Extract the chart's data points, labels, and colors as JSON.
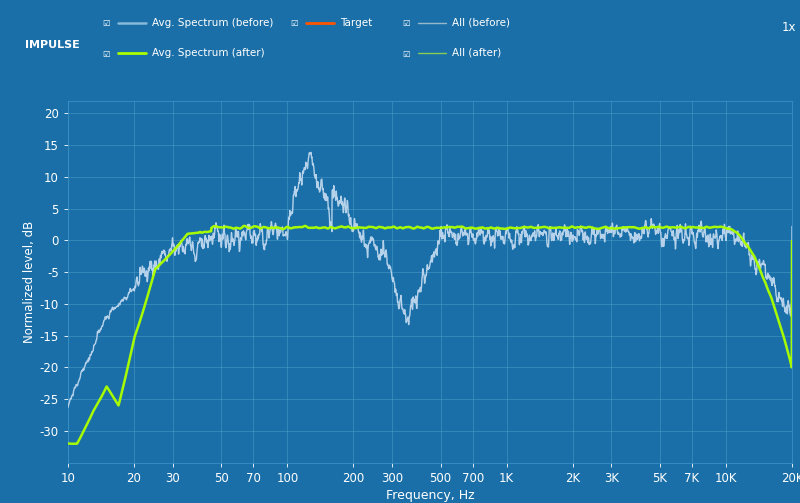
{
  "bg_color": "#1a6fa8",
  "plot_bg_color": "#1a6fa8",
  "grid_color": "#4a9fc8",
  "xlabel": "Frequency, Hz",
  "ylabel": "Normalized level, dB",
  "ylim": [
    -35,
    22
  ],
  "yticks": [
    -30,
    -25,
    -20,
    -15,
    -10,
    -5,
    0,
    5,
    10,
    15,
    20
  ],
  "freq_labels": [
    "10",
    "20",
    "30",
    "50",
    "70",
    "100",
    "200",
    "300",
    "500",
    "700",
    "1K",
    "2K",
    "3K",
    "5K",
    "7K",
    "10K",
    "20K"
  ],
  "freq_values": [
    10,
    20,
    30,
    50,
    70,
    100,
    200,
    300,
    500,
    700,
    1000,
    2000,
    3000,
    5000,
    7000,
    10000,
    20000
  ],
  "color_before": "#c0d8ee",
  "color_after": "#aaff00",
  "color_after_dim": "#88cc55",
  "impulse_bg": "#2a7fbf",
  "impulse_label": "IMPULSE",
  "scale_label": "1x",
  "legend_row1": [
    {
      "label": "Avg. Spectrum (before)",
      "color": "#88b8d8",
      "lw": 1.8
    },
    {
      "label": "Target",
      "color": "#ff5500",
      "lw": 2
    },
    {
      "label": "All (before)",
      "color": "#9ab8cc",
      "lw": 1
    }
  ],
  "legend_row2": [
    {
      "label": "Avg. Spectrum (after)",
      "color": "#aaff00",
      "lw": 2
    },
    {
      "label": "All (after)",
      "color": "#88cc55",
      "lw": 1
    }
  ]
}
